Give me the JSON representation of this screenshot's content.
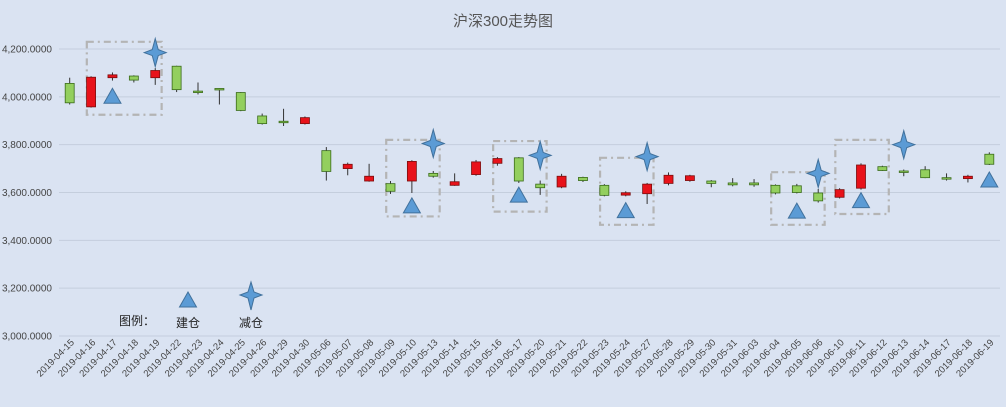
{
  "chart_data": {
    "type": "candlestick",
    "title": "沪深300走势图",
    "ylim": [
      3000,
      4300
    ],
    "yticks": [
      "3,000.0000",
      "3,200.0000",
      "3,400.0000",
      "3,600.0000",
      "3,800.0000",
      "4,000.0000",
      "4,200.0000"
    ],
    "ytick_values": [
      3000,
      3200,
      3400,
      3600,
      3800,
      4000,
      4200
    ],
    "grid": true,
    "up_color": "#e8121a",
    "down_color": "#93cf5e",
    "candles": [
      {
        "date": "2019-04-15",
        "open": 4056,
        "close": 3975,
        "high": 4080,
        "low": 3968
      },
      {
        "date": "2019-04-16",
        "open": 3958,
        "close": 4082,
        "high": 4086,
        "low": 3955
      },
      {
        "date": "2019-04-17",
        "open": 4080,
        "close": 4092,
        "high": 4102,
        "low": 4068
      },
      {
        "date": "2019-04-18",
        "open": 4087,
        "close": 4070,
        "high": 4090,
        "low": 4060
      },
      {
        "date": "2019-04-19",
        "open": 4080,
        "close": 4110,
        "high": 4120,
        "low": 4050
      },
      {
        "date": "2019-04-22",
        "open": 4128,
        "close": 4030,
        "high": 4130,
        "low": 4020
      },
      {
        "date": "2019-04-23",
        "open": 4024,
        "close": 4018,
        "high": 4060,
        "low": 4010
      },
      {
        "date": "2019-04-24",
        "open": 4035,
        "close": 4030,
        "high": 4036,
        "low": 3968
      },
      {
        "date": "2019-04-25",
        "open": 4018,
        "close": 3943,
        "high": 4020,
        "low": 3940
      },
      {
        "date": "2019-04-26",
        "open": 3920,
        "close": 3888,
        "high": 3930,
        "low": 3884
      },
      {
        "date": "2019-04-29",
        "open": 3898,
        "close": 3895,
        "high": 3950,
        "low": 3878
      },
      {
        "date": "2019-04-30",
        "open": 3888,
        "close": 3913,
        "high": 3918,
        "low": 3884
      },
      {
        "date": "2019-05-06",
        "open": 3775,
        "close": 3688,
        "high": 3790,
        "low": 3650
      },
      {
        "date": "2019-05-07",
        "open": 3700,
        "close": 3718,
        "high": 3725,
        "low": 3672
      },
      {
        "date": "2019-05-08",
        "open": 3648,
        "close": 3668,
        "high": 3720,
        "low": 3645
      },
      {
        "date": "2019-05-09",
        "open": 3637,
        "close": 3605,
        "high": 3648,
        "low": 3594
      },
      {
        "date": "2019-05-10",
        "open": 3648,
        "close": 3730,
        "high": 3735,
        "low": 3598
      },
      {
        "date": "2019-05-13",
        "open": 3680,
        "close": 3668,
        "high": 3690,
        "low": 3662
      },
      {
        "date": "2019-05-14",
        "open": 3630,
        "close": 3645,
        "high": 3680,
        "low": 3628
      },
      {
        "date": "2019-05-15",
        "open": 3675,
        "close": 3728,
        "high": 3736,
        "low": 3670
      },
      {
        "date": "2019-05-16",
        "open": 3722,
        "close": 3742,
        "high": 3748,
        "low": 3712
      },
      {
        "date": "2019-05-17",
        "open": 3745,
        "close": 3648,
        "high": 3748,
        "low": 3640
      },
      {
        "date": "2019-05-20",
        "open": 3635,
        "close": 3620,
        "high": 3650,
        "low": 3590
      },
      {
        "date": "2019-05-21",
        "open": 3623,
        "close": 3668,
        "high": 3678,
        "low": 3618
      },
      {
        "date": "2019-05-22",
        "open": 3663,
        "close": 3650,
        "high": 3666,
        "low": 3644
      },
      {
        "date": "2019-05-23",
        "open": 3630,
        "close": 3588,
        "high": 3635,
        "low": 3584
      },
      {
        "date": "2019-05-24",
        "open": 3589,
        "close": 3599,
        "high": 3605,
        "low": 3584
      },
      {
        "date": "2019-05-27",
        "open": 3595,
        "close": 3635,
        "high": 3640,
        "low": 3552
      },
      {
        "date": "2019-05-28",
        "open": 3638,
        "close": 3672,
        "high": 3684,
        "low": 3630
      },
      {
        "date": "2019-05-29",
        "open": 3650,
        "close": 3670,
        "high": 3674,
        "low": 3645
      },
      {
        "date": "2019-05-30",
        "open": 3648,
        "close": 3638,
        "high": 3652,
        "low": 3622
      },
      {
        "date": "2019-05-31",
        "open": 3640,
        "close": 3632,
        "high": 3660,
        "low": 3626
      },
      {
        "date": "2019-06-03",
        "open": 3640,
        "close": 3632,
        "high": 3656,
        "low": 3624
      },
      {
        "date": "2019-06-04",
        "open": 3630,
        "close": 3598,
        "high": 3634,
        "low": 3592
      },
      {
        "date": "2019-06-05",
        "open": 3628,
        "close": 3600,
        "high": 3636,
        "low": 3596
      },
      {
        "date": "2019-06-06",
        "open": 3598,
        "close": 3565,
        "high": 3615,
        "low": 3558
      },
      {
        "date": "2019-06-10",
        "open": 3580,
        "close": 3612,
        "high": 3618,
        "low": 3575
      },
      {
        "date": "2019-06-11",
        "open": 3618,
        "close": 3715,
        "high": 3722,
        "low": 3612
      },
      {
        "date": "2019-06-12",
        "open": 3708,
        "close": 3692,
        "high": 3712,
        "low": 3690
      },
      {
        "date": "2019-06-13",
        "open": 3690,
        "close": 3686,
        "high": 3696,
        "low": 3668
      },
      {
        "date": "2019-06-14",
        "open": 3695,
        "close": 3662,
        "high": 3710,
        "low": 3660
      },
      {
        "date": "2019-06-17",
        "open": 3662,
        "close": 3656,
        "high": 3680,
        "low": 3650
      },
      {
        "date": "2019-06-18",
        "open": 3658,
        "close": 3668,
        "high": 3674,
        "low": 3642
      },
      {
        "date": "2019-06-19",
        "open": 3760,
        "close": 3718,
        "high": 3768,
        "low": 3715
      }
    ],
    "markers": {
      "build": {
        "label": "建仓",
        "color": "#5b9bd5",
        "points": [
          {
            "index": 2,
            "value": 3998
          },
          {
            "index": 16,
            "value": 3540
          },
          {
            "index": 21,
            "value": 3585
          },
          {
            "index": 26,
            "value": 3520
          },
          {
            "index": 34,
            "value": 3518
          },
          {
            "index": 37,
            "value": 3562
          },
          {
            "index": 43,
            "value": 3648
          }
        ]
      },
      "reduce": {
        "label": "减仓",
        "color": "#5b9bd5",
        "points": [
          {
            "index": 4,
            "value": 4185
          },
          {
            "index": 17,
            "value": 3805
          },
          {
            "index": 22,
            "value": 3755
          },
          {
            "index": 27,
            "value": 3750
          },
          {
            "index": 35,
            "value": 3680
          },
          {
            "index": 39,
            "value": 3800
          }
        ]
      }
    },
    "regions": [
      {
        "from": 1.3,
        "to": 4.8,
        "high": 4230,
        "low": 3925
      },
      {
        "from": 15.3,
        "to": 17.8,
        "high": 3820,
        "low": 3500
      },
      {
        "from": 20.3,
        "to": 22.8,
        "high": 3815,
        "low": 3520
      },
      {
        "from": 25.3,
        "to": 27.8,
        "high": 3745,
        "low": 3465
      },
      {
        "from": 33.3,
        "to": 35.8,
        "high": 3685,
        "low": 3465
      },
      {
        "from": 36.3,
        "to": 38.8,
        "high": 3820,
        "low": 3510
      }
    ],
    "legend": {
      "title": "图例："
    }
  }
}
